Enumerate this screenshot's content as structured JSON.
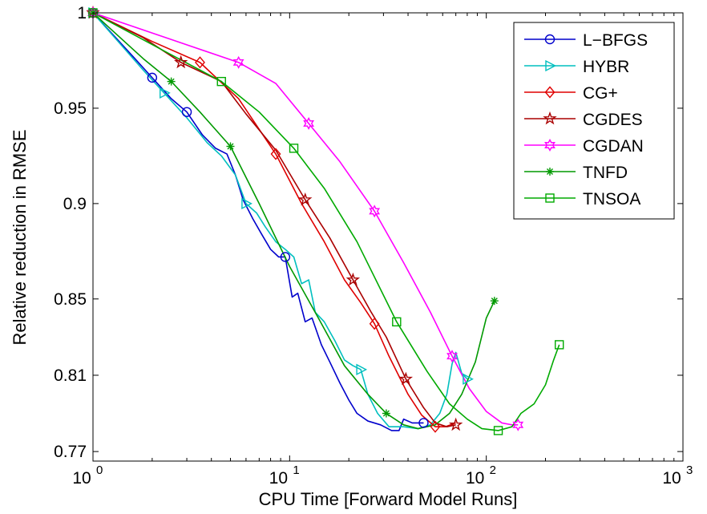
{
  "chart_data": {
    "type": "line",
    "xlabel": "CPU Time [Forward Model Runs]",
    "ylabel": "Relative reduction in RMSE",
    "xscale": "log",
    "xlim": [
      1,
      1000
    ],
    "ylim": [
      0.765,
      1.0
    ],
    "xticks": [
      {
        "value": 1,
        "base": "10",
        "exp": "0"
      },
      {
        "value": 10,
        "base": "10",
        "exp": "1"
      },
      {
        "value": 100,
        "base": "10",
        "exp": "2"
      },
      {
        "value": 1000,
        "base": "10",
        "exp": "3"
      }
    ],
    "yticks": [
      {
        "value": 0.77,
        "label": "0.77"
      },
      {
        "value": 0.81,
        "label": "0.81"
      },
      {
        "value": 0.85,
        "label": "0.85"
      },
      {
        "value": 0.9,
        "label": "0.9"
      },
      {
        "value": 0.95,
        "label": "0.95"
      },
      {
        "value": 1.0,
        "label": "1"
      }
    ],
    "grid": false,
    "legend_position": "top-right",
    "series": [
      {
        "name": "L−BFGS",
        "color": "#0000cc",
        "marker": "circle",
        "points": [
          [
            1,
            1.0
          ],
          [
            1.6,
            0.977
          ],
          [
            2.0,
            0.966
          ],
          [
            2.5,
            0.955
          ],
          [
            3.0,
            0.948
          ],
          [
            3.6,
            0.936
          ],
          [
            4.2,
            0.929
          ],
          [
            4.8,
            0.926
          ],
          [
            5.3,
            0.915
          ],
          [
            5.8,
            0.902
          ],
          [
            6.5,
            0.892
          ],
          [
            7.2,
            0.884
          ],
          [
            8.0,
            0.876
          ],
          [
            8.8,
            0.872
          ],
          [
            9.5,
            0.872
          ],
          [
            10.3,
            0.851
          ],
          [
            11.0,
            0.853
          ],
          [
            12.0,
            0.838
          ],
          [
            13.0,
            0.84
          ],
          [
            14.5,
            0.826
          ],
          [
            16.0,
            0.817
          ],
          [
            18.0,
            0.806
          ],
          [
            20.0,
            0.797
          ],
          [
            22.0,
            0.79
          ],
          [
            25.0,
            0.786
          ],
          [
            29.0,
            0.784
          ],
          [
            33.0,
            0.781
          ],
          [
            36.0,
            0.781
          ],
          [
            38.0,
            0.787
          ],
          [
            42.0,
            0.785
          ],
          [
            48.0,
            0.785
          ]
        ],
        "markers": [
          [
            1,
            1.0
          ],
          [
            2.0,
            0.966
          ],
          [
            3.0,
            0.948
          ],
          [
            9.5,
            0.872
          ],
          [
            48.0,
            0.785
          ]
        ]
      },
      {
        "name": "HYBR",
        "color": "#00bfbf",
        "marker": "triangle-right",
        "points": [
          [
            1,
            1.0
          ],
          [
            1.8,
            0.97
          ],
          [
            2.3,
            0.958
          ],
          [
            3.0,
            0.945
          ],
          [
            3.8,
            0.932
          ],
          [
            4.5,
            0.925
          ],
          [
            5.3,
            0.915
          ],
          [
            6.0,
            0.9
          ],
          [
            6.8,
            0.895
          ],
          [
            7.5,
            0.888
          ],
          [
            8.5,
            0.88
          ],
          [
            9.5,
            0.876
          ],
          [
            10.5,
            0.872
          ],
          [
            11.5,
            0.858
          ],
          [
            12.5,
            0.86
          ],
          [
            13.5,
            0.843
          ],
          [
            15.0,
            0.838
          ],
          [
            17.0,
            0.828
          ],
          [
            19.0,
            0.818
          ],
          [
            21.0,
            0.815
          ],
          [
            23.0,
            0.813
          ],
          [
            25.0,
            0.8
          ],
          [
            28.0,
            0.79
          ],
          [
            32.0,
            0.783
          ],
          [
            38.0,
            0.783
          ],
          [
            45.0,
            0.782
          ],
          [
            52.0,
            0.784
          ],
          [
            58.0,
            0.79
          ],
          [
            63.0,
            0.8
          ],
          [
            67.0,
            0.816
          ],
          [
            70.0,
            0.822
          ],
          [
            75.0,
            0.811
          ],
          [
            80.0,
            0.808
          ]
        ],
        "markers": [
          [
            1,
            1.0
          ],
          [
            2.3,
            0.958
          ],
          [
            6.0,
            0.9
          ],
          [
            23.0,
            0.813
          ],
          [
            80.0,
            0.808
          ]
        ]
      },
      {
        "name": "CG+",
        "color": "#e00000",
        "marker": "diamond",
        "points": [
          [
            1,
            1.0
          ],
          [
            2.0,
            0.985
          ],
          [
            3.5,
            0.974
          ],
          [
            5.5,
            0.955
          ],
          [
            8.5,
            0.926
          ],
          [
            11.5,
            0.9
          ],
          [
            15.0,
            0.88
          ],
          [
            19.0,
            0.86
          ],
          [
            23.0,
            0.848
          ],
          [
            27.0,
            0.837
          ],
          [
            32.0,
            0.82
          ],
          [
            40.0,
            0.8
          ],
          [
            47.0,
            0.789
          ],
          [
            55.0,
            0.783
          ],
          [
            62.0,
            0.783
          ],
          [
            70.0,
            0.785
          ]
        ],
        "markers": [
          [
            1,
            1.0
          ],
          [
            3.5,
            0.974
          ],
          [
            8.5,
            0.926
          ],
          [
            27.0,
            0.837
          ],
          [
            55.0,
            0.783
          ]
        ]
      },
      {
        "name": "CGDES",
        "color": "#aa0000",
        "marker": "star",
        "points": [
          [
            1,
            1.0
          ],
          [
            1.8,
            0.987
          ],
          [
            2.8,
            0.974
          ],
          [
            4.5,
            0.964
          ],
          [
            6.0,
            0.947
          ],
          [
            8.5,
            0.928
          ],
          [
            12.0,
            0.902
          ],
          [
            16.0,
            0.882
          ],
          [
            21.0,
            0.86
          ],
          [
            26.0,
            0.843
          ],
          [
            31.0,
            0.83
          ],
          [
            39.0,
            0.808
          ],
          [
            48.0,
            0.793
          ],
          [
            55.0,
            0.785
          ],
          [
            63.0,
            0.783
          ],
          [
            70.0,
            0.784
          ]
        ],
        "markers": [
          [
            1,
            1.0
          ],
          [
            2.8,
            0.974
          ],
          [
            12.0,
            0.902
          ],
          [
            21.0,
            0.86
          ],
          [
            39.0,
            0.808
          ],
          [
            70.0,
            0.784
          ]
        ]
      },
      {
        "name": "CGDAN",
        "color": "#ff00ff",
        "marker": "hexagram",
        "points": [
          [
            1,
            1.0
          ],
          [
            2.5,
            0.986
          ],
          [
            5.5,
            0.974
          ],
          [
            8.5,
            0.963
          ],
          [
            12.5,
            0.942
          ],
          [
            18.0,
            0.922
          ],
          [
            27.0,
            0.896
          ],
          [
            38.0,
            0.869
          ],
          [
            52.0,
            0.843
          ],
          [
            67.0,
            0.82
          ],
          [
            82.0,
            0.803
          ],
          [
            100.0,
            0.791
          ],
          [
            120.0,
            0.785
          ],
          [
            135.0,
            0.784
          ],
          [
            145.0,
            0.784
          ]
        ],
        "markers": [
          [
            1,
            1.0
          ],
          [
            5.5,
            0.974
          ],
          [
            12.5,
            0.942
          ],
          [
            27.0,
            0.896
          ],
          [
            67.0,
            0.82
          ],
          [
            145.0,
            0.784
          ]
        ]
      },
      {
        "name": "TNFD",
        "color": "#009900",
        "marker": "asterisk",
        "points": [
          [
            1,
            1.0
          ],
          [
            1.8,
            0.976
          ],
          [
            2.5,
            0.964
          ],
          [
            3.5,
            0.948
          ],
          [
            5.0,
            0.93
          ],
          [
            7.0,
            0.9
          ],
          [
            10.0,
            0.867
          ],
          [
            14.0,
            0.84
          ],
          [
            19.0,
            0.815
          ],
          [
            25.0,
            0.8
          ],
          [
            31.0,
            0.79
          ],
          [
            38.0,
            0.784
          ],
          [
            45.0,
            0.782
          ],
          [
            55.0,
            0.784
          ],
          [
            65.0,
            0.79
          ],
          [
            75.0,
            0.8
          ],
          [
            88.0,
            0.817
          ],
          [
            100.0,
            0.84
          ],
          [
            110.0,
            0.849
          ]
        ],
        "markers": [
          [
            1,
            1.0
          ],
          [
            2.5,
            0.964
          ],
          [
            5.0,
            0.93
          ],
          [
            31.0,
            0.79
          ],
          [
            110.0,
            0.849
          ]
        ]
      },
      {
        "name": "TNSOA",
        "color": "#00aa00",
        "marker": "square",
        "points": [
          [
            1,
            1.0
          ],
          [
            2.5,
            0.978
          ],
          [
            4.5,
            0.964
          ],
          [
            7.0,
            0.948
          ],
          [
            10.5,
            0.929
          ],
          [
            15.0,
            0.908
          ],
          [
            22.0,
            0.88
          ],
          [
            35.0,
            0.838
          ],
          [
            50.0,
            0.812
          ],
          [
            65.0,
            0.795
          ],
          [
            80.0,
            0.787
          ],
          [
            95.0,
            0.782
          ],
          [
            115.0,
            0.781
          ],
          [
            135.0,
            0.783
          ],
          [
            150.0,
            0.79
          ],
          [
            175.0,
            0.795
          ],
          [
            200.0,
            0.805
          ],
          [
            220.0,
            0.818
          ],
          [
            235.0,
            0.826
          ]
        ],
        "markers": [
          [
            1,
            1.0
          ],
          [
            4.5,
            0.964
          ],
          [
            10.5,
            0.929
          ],
          [
            35.0,
            0.838
          ],
          [
            115.0,
            0.781
          ],
          [
            235.0,
            0.826
          ]
        ]
      }
    ]
  }
}
